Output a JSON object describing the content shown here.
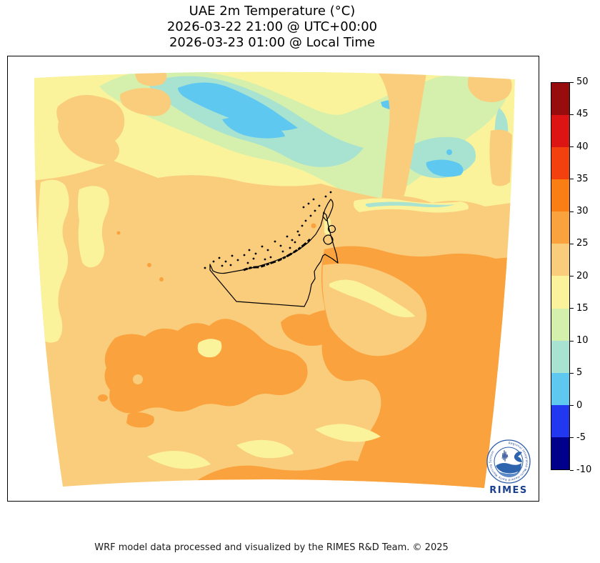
{
  "title": {
    "line1": "UAE 2m Temperature (°C)",
    "line2": "2026-03-22 21:00 @ UTC+00:00",
    "line3": "2026-03-23 01:00 @ Local Time"
  },
  "map": {
    "region_label": "UAE",
    "outline_color": "#000000",
    "palette": {
      "navy": "#00008B",
      "blue": "#2238F0",
      "skyBlue": "#5FC8F0",
      "teal": "#A8E2D0",
      "paleGreen": "#D5F0AC",
      "paleYellow": "#FAF39C",
      "sandy": "#FACD7D",
      "orange": "#FAA23E",
      "deepOrange": "#F97E14",
      "redOrange": "#F2400E",
      "red": "#DC1414",
      "darkRed": "#970C0C"
    }
  },
  "colorbar": {
    "unit": "°C",
    "ticks": [
      "50",
      "45",
      "40",
      "35",
      "30",
      "25",
      "20",
      "15",
      "10",
      "5",
      "0",
      "-5",
      "-10"
    ],
    "segments_top_to_bottom": [
      {
        "range": "45 to 50",
        "color_key": "darkRed"
      },
      {
        "range": "40 to 45",
        "color_key": "red"
      },
      {
        "range": "35 to 40",
        "color_key": "redOrange"
      },
      {
        "range": "30 to 35",
        "color_key": "deepOrange"
      },
      {
        "range": "25 to 30",
        "color_key": "orange"
      },
      {
        "range": "20 to 25",
        "color_key": "sandy"
      },
      {
        "range": "15 to 20",
        "color_key": "paleYellow"
      },
      {
        "range": "10 to 15",
        "color_key": "paleGreen"
      },
      {
        "range": "5 to 10",
        "color_key": "teal"
      },
      {
        "range": "0 to 5",
        "color_key": "skyBlue"
      },
      {
        "range": "-5 to 0",
        "color_key": "blue"
      },
      {
        "range": "-10 to -5",
        "color_key": "navy"
      }
    ]
  },
  "logo": {
    "acronym": "RIMES",
    "rim_text": "Regional Integrated Multi-Hazard Early Warning System"
  },
  "footer": {
    "credit": "WRF model data processed and visualized by the RIMES R&D Team. © 2025"
  }
}
